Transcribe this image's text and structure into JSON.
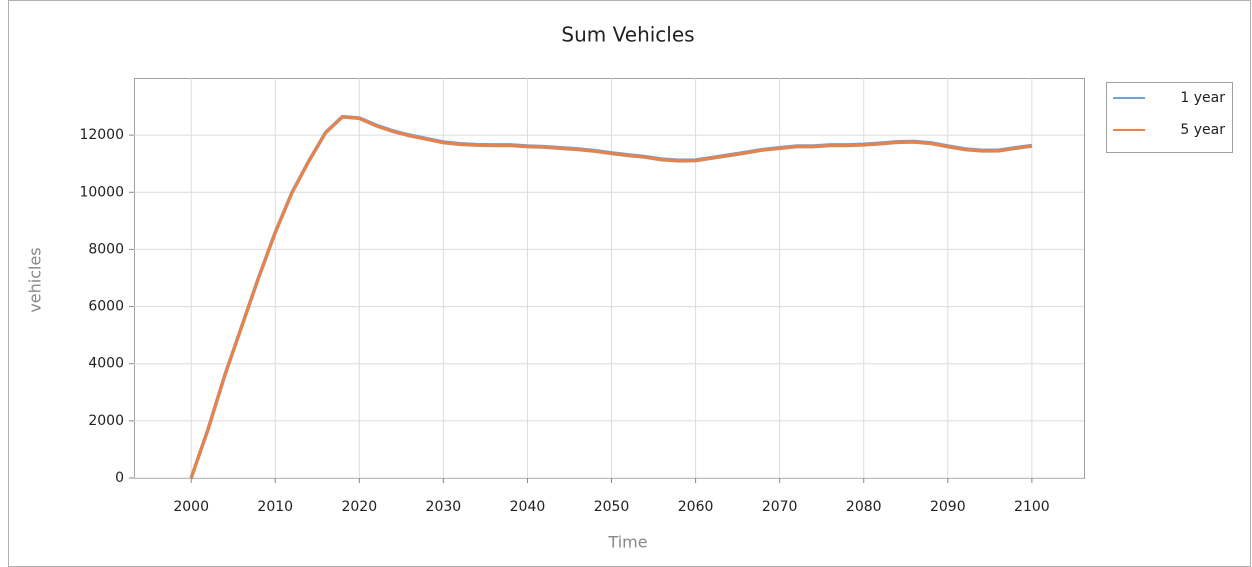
{
  "chart_data": {
    "type": "line",
    "title": "Sum Vehicles",
    "x_label": "Time",
    "y_label": "vehicles",
    "x": [
      2000,
      2002,
      2004,
      2006,
      2008,
      2010,
      2012,
      2014,
      2016,
      2018,
      2020,
      2022,
      2024,
      2026,
      2028,
      2030,
      2032,
      2034,
      2036,
      2038,
      2040,
      2042,
      2044,
      2046,
      2048,
      2050,
      2052,
      2054,
      2056,
      2058,
      2060,
      2062,
      2064,
      2066,
      2068,
      2070,
      2072,
      2074,
      2076,
      2078,
      2080,
      2082,
      2084,
      2086,
      2088,
      2090,
      2092,
      2094,
      2096,
      2098,
      2100
    ],
    "series": [
      {
        "name": "1 year",
        "color": "#6fa3d8",
        "values": [
          0,
          1700,
          3600,
          5300,
          7000,
          8600,
          10000,
          11100,
          12100,
          12650,
          12600,
          12350,
          12150,
          12000,
          11880,
          11760,
          11700,
          11670,
          11660,
          11660,
          11620,
          11600,
          11560,
          11520,
          11460,
          11380,
          11310,
          11250,
          11160,
          11120,
          11130,
          11220,
          11310,
          11400,
          11500,
          11560,
          11620,
          11620,
          11660,
          11660,
          11680,
          11720,
          11770,
          11780,
          11730,
          11620,
          11520,
          11470,
          11470,
          11560,
          11640
        ]
      },
      {
        "name": "5 year",
        "color": "#ee8044",
        "values": [
          0,
          1680,
          3580,
          5280,
          6980,
          8580,
          9980,
          11080,
          12080,
          12630,
          12580,
          12320,
          12120,
          11970,
          11850,
          11730,
          11670,
          11640,
          11630,
          11630,
          11590,
          11570,
          11530,
          11490,
          11430,
          11350,
          11280,
          11220,
          11130,
          11090,
          11100,
          11190,
          11280,
          11370,
          11470,
          11530,
          11590,
          11590,
          11630,
          11630,
          11650,
          11690,
          11740,
          11750,
          11700,
          11590,
          11490,
          11440,
          11440,
          11530,
          11610
        ]
      }
    ],
    "xlim": [
      1993.2,
      2106.2
    ],
    "xticks": [
      2000,
      2010,
      2020,
      2030,
      2040,
      2050,
      2060,
      2070,
      2080,
      2090,
      2100
    ],
    "ylim": [
      0,
      14000
    ],
    "yticks": [
      0,
      2000,
      4000,
      6000,
      8000,
      10000,
      12000
    ],
    "grid": true,
    "legend": "right"
  }
}
